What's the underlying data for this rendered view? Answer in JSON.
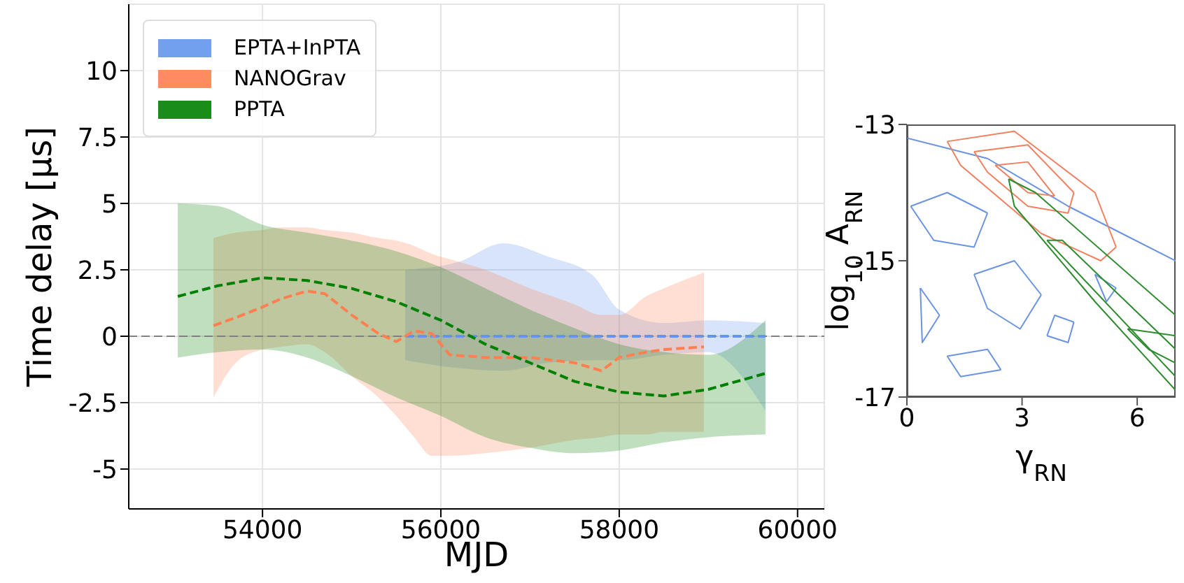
{
  "chart_data": [
    {
      "type": "line",
      "xlabel": "MJD",
      "ylabel": "Time delay [μs]",
      "xlim": [
        52500,
        60300
      ],
      "xticks": [
        54000,
        56000,
        58000,
        60000
      ],
      "ylim": [
        -6.5,
        12.5
      ],
      "yticks": [
        -5,
        -2.5,
        0,
        2.5,
        5,
        7.5,
        10
      ],
      "grid": true,
      "legend": "top left",
      "line_style": "dashed",
      "marker": "none",
      "ref_lines": [
        {
          "axis": "y",
          "value": 0,
          "color": "#808080",
          "line_style": "dashed"
        }
      ],
      "series": [
        {
          "name": "EPTA+InPTA",
          "color": "#6495ed",
          "x": [
            55600,
            56200,
            56700,
            57200,
            57700,
            58000,
            58500,
            59000,
            59640
          ],
          "values": [
            0,
            0,
            0,
            0,
            0,
            0,
            0,
            0,
            0
          ],
          "lower": [
            -0.9,
            -1.2,
            -1.3,
            -1.0,
            -0.9,
            -0.9,
            -0.7,
            -0.6,
            -2.8
          ],
          "upper": [
            2.5,
            2.8,
            3.5,
            3.0,
            2.3,
            1.0,
            0.5,
            0.6,
            0.5
          ]
        },
        {
          "name": "NANOGrav",
          "color": "#ff7f50",
          "x": [
            53450,
            53700,
            54000,
            54200,
            54500,
            54700,
            55000,
            55300,
            55500,
            55700,
            55900,
            56100,
            56500,
            57000,
            57500,
            57800,
            58000,
            58300,
            58500,
            58950
          ],
          "values": [
            0.4,
            0.7,
            1.1,
            1.4,
            1.7,
            1.6,
            0.8,
            0.1,
            -0.2,
            0.2,
            0.1,
            -0.7,
            -0.8,
            -0.8,
            -1.0,
            -1.3,
            -0.8,
            -0.6,
            -0.5,
            -0.4
          ],
          "lower": [
            -2.3,
            -1.0,
            -0.5,
            -0.4,
            -0.3,
            -0.6,
            -1.5,
            -2.3,
            -3.0,
            -3.8,
            -4.5,
            -4.5,
            -4.4,
            -4.2,
            -3.9,
            -3.8,
            -3.7,
            -3.7,
            -3.6,
            -3.6
          ],
          "upper": [
            3.7,
            3.9,
            4.0,
            4.1,
            4.1,
            4.0,
            3.9,
            3.7,
            3.6,
            3.4,
            3.1,
            2.9,
            2.5,
            1.8,
            1.2,
            0.8,
            0.8,
            1.5,
            1.8,
            2.4
          ]
        },
        {
          "name": "PPTA",
          "color": "#008000",
          "x": [
            53050,
            53500,
            54000,
            54500,
            55000,
            55500,
            56000,
            56500,
            57000,
            57500,
            58000,
            58500,
            59000,
            59640
          ],
          "values": [
            1.5,
            1.9,
            2.2,
            2.1,
            1.8,
            1.3,
            0.6,
            -0.3,
            -1.0,
            -1.7,
            -2.1,
            -2.25,
            -2.0,
            -1.4
          ],
          "lower": [
            -0.8,
            -0.6,
            -0.5,
            -0.8,
            -1.5,
            -2.3,
            -3.0,
            -3.8,
            -4.2,
            -4.4,
            -4.3,
            -4.0,
            -3.8,
            -3.7
          ],
          "upper": [
            5.0,
            4.9,
            4.2,
            3.9,
            3.6,
            3.2,
            2.6,
            1.8,
            1.0,
            0.3,
            -0.3,
            -0.6,
            -0.7,
            0.6
          ]
        }
      ]
    },
    {
      "type": "line",
      "xlabel": "γ$_{RN}$",
      "ylabel": "log$_{10}$ A$_{RN}$",
      "xlim": [
        0,
        7
      ],
      "xticks": [
        0,
        3,
        6
      ],
      "ylim": [
        -17,
        -13
      ],
      "yticks": [
        -13,
        -15,
        -17
      ],
      "line_style": "solid",
      "marker": "none",
      "series": [
        {
          "color": "#6a93e0",
          "x": [
            0,
            2.1,
            4.2,
            5.6,
            7
          ],
          "values": [
            -13.2,
            -13.5,
            -14.2,
            -14.6,
            -15.0
          ]
        },
        {
          "color": "#6a93e0",
          "x": [
            0.1,
            1.05,
            2.1
          ],
          "values": [
            -14.2,
            -14.0,
            -14.3
          ]
        },
        {
          "color": "#6a93e0",
          "x": [
            0.1,
            0.7,
            1.75,
            2.1
          ],
          "values": [
            -14.2,
            -14.7,
            -14.8,
            -14.3
          ]
        },
        {
          "color": "#6a93e0",
          "x": [
            1.75,
            2.8,
            3.5
          ],
          "values": [
            -15.2,
            -15.0,
            -15.5
          ]
        },
        {
          "color": "#6a93e0",
          "x": [
            1.75,
            2.1,
            2.95,
            3.5
          ],
          "values": [
            -15.2,
            -15.7,
            -16.0,
            -15.5
          ]
        },
        {
          "color": "#6a93e0",
          "x": [
            0.35,
            0.85
          ],
          "values": [
            -15.4,
            -15.8
          ]
        },
        {
          "color": "#6a93e0",
          "x": [
            0.35,
            0.4,
            0.85
          ],
          "values": [
            -15.4,
            -16.2,
            -15.8
          ]
        },
        {
          "color": "#6a93e0",
          "x": [
            3.65,
            3.85,
            4.35
          ],
          "values": [
            -16.1,
            -15.8,
            -15.9
          ]
        },
        {
          "color": "#6a93e0",
          "x": [
            3.65,
            4.2,
            4.35
          ],
          "values": [
            -16.1,
            -16.2,
            -15.9
          ]
        },
        {
          "color": "#6a93e0",
          "x": [
            1.05,
            2.1,
            2.45
          ],
          "values": [
            -16.4,
            -16.3,
            -16.6
          ]
        },
        {
          "color": "#6a93e0",
          "x": [
            1.05,
            1.4,
            2.45
          ],
          "values": [
            -16.4,
            -16.7,
            -16.6
          ]
        },
        {
          "color": "#6a93e0",
          "x": [
            4.9,
            5.45
          ],
          "values": [
            -15.2,
            -15.4
          ]
        },
        {
          "color": "#6a93e0",
          "x": [
            4.9,
            5.2,
            5.45
          ],
          "values": [
            -15.2,
            -15.6,
            -15.4
          ]
        },
        {
          "color": "#f08060",
          "x": [
            1.05,
            2.8,
            4.9,
            5.45
          ],
          "values": [
            -13.25,
            -13.1,
            -14.0,
            -14.8
          ]
        },
        {
          "color": "#f08060",
          "x": [
            1.05,
            1.4,
            3.5,
            5.05,
            5.45
          ],
          "values": [
            -13.25,
            -13.6,
            -14.6,
            -15.0,
            -14.8
          ]
        },
        {
          "color": "#f08060",
          "x": [
            1.75,
            3.15,
            4.35
          ],
          "values": [
            -13.4,
            -13.3,
            -14.0
          ]
        },
        {
          "color": "#f08060",
          "x": [
            1.75,
            2.1,
            3.15,
            4.2,
            4.35
          ],
          "values": [
            -13.4,
            -13.7,
            -14.2,
            -14.3,
            -14.0
          ]
        },
        {
          "color": "#f08060",
          "x": [
            2.3,
            3.15,
            3.85
          ],
          "values": [
            -13.6,
            -13.55,
            -14.05
          ]
        },
        {
          "color": "#f08060",
          "x": [
            2.3,
            3.15,
            3.85
          ],
          "values": [
            -13.6,
            -14.0,
            -14.05
          ]
        },
        {
          "color": "#2e8b2e",
          "x": [
            2.65,
            3.35,
            7
          ],
          "values": [
            -13.8,
            -14.0,
            -15.8
          ]
        },
        {
          "color": "#2e8b2e",
          "x": [
            2.65,
            2.8,
            4.9,
            7
          ],
          "values": [
            -13.8,
            -14.2,
            -15.6,
            -16.9
          ]
        },
        {
          "color": "#2e8b2e",
          "x": [
            3.65,
            4.05,
            7
          ],
          "values": [
            -14.7,
            -14.7,
            -16.3
          ]
        },
        {
          "color": "#2e8b2e",
          "x": [
            3.65,
            7
          ],
          "values": [
            -14.7,
            -16.7
          ]
        },
        {
          "color": "#2e8b2e",
          "x": [
            5.75,
            7
          ],
          "values": [
            -16.0,
            -16.1
          ]
        },
        {
          "color": "#2e8b2e",
          "x": [
            5.75,
            6.3,
            7
          ],
          "values": [
            -16.0,
            -16.3,
            -16.5
          ]
        }
      ]
    }
  ]
}
